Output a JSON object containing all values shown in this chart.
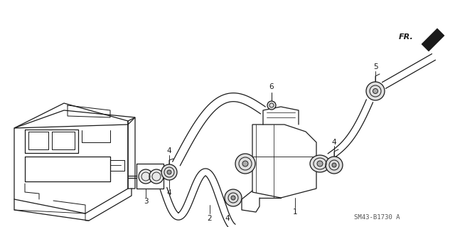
{
  "bg_color": "#ffffff",
  "line_color": "#1a1a1a",
  "diagram_id": "SM43-B1730 A",
  "fr_label": "FR.",
  "figsize": [
    6.4,
    3.19
  ],
  "dpi": 100,
  "xlim": [
    0,
    640
  ],
  "ylim": [
    0,
    319
  ]
}
